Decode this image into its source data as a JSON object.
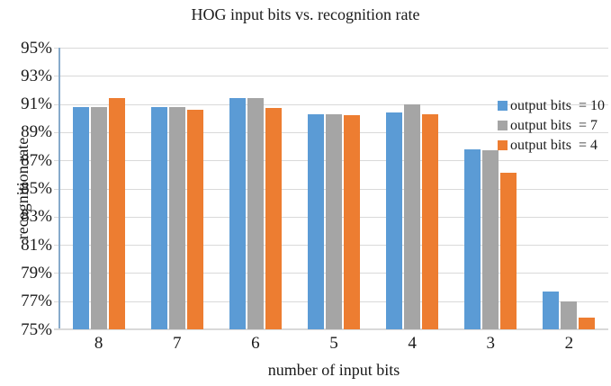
{
  "chart_data": {
    "type": "bar",
    "title": "HOG input bits vs. recognition rate",
    "xlabel": "number of input bits",
    "ylabel": "recognition rate",
    "categories": [
      "8",
      "7",
      "6",
      "5",
      "4",
      "3",
      "2"
    ],
    "series": [
      {
        "name": "output bits  = 10",
        "color": "#5B9BD5",
        "pattern": "solid",
        "values": [
          90.8,
          90.8,
          91.4,
          90.3,
          90.4,
          87.8,
          77.7
        ]
      },
      {
        "name": "output bits  = 7",
        "color": "#A5A5A5",
        "pattern": "dotted",
        "values": [
          90.8,
          90.8,
          91.4,
          90.3,
          91.0,
          87.7,
          77.0
        ]
      },
      {
        "name": "output bits  = 4",
        "color": "#ED7D31",
        "pattern": "solid",
        "values": [
          91.4,
          90.6,
          90.7,
          90.2,
          90.3,
          86.1,
          75.8
        ]
      }
    ],
    "ylim": [
      75,
      95
    ],
    "ytick_step": 2,
    "yticks": [
      "95%",
      "93%",
      "91%",
      "89%",
      "87%",
      "85%",
      "83%",
      "81%",
      "79%",
      "77%",
      "75%"
    ],
    "grid": true,
    "legend_position": "top-right",
    "colors": {
      "gridline": "#D9D9D9",
      "y_axis_line": "#87AACB",
      "x_axis_line": "#D9D9D9",
      "text": "#1A1A1A",
      "background": "#FFFFFF"
    }
  }
}
